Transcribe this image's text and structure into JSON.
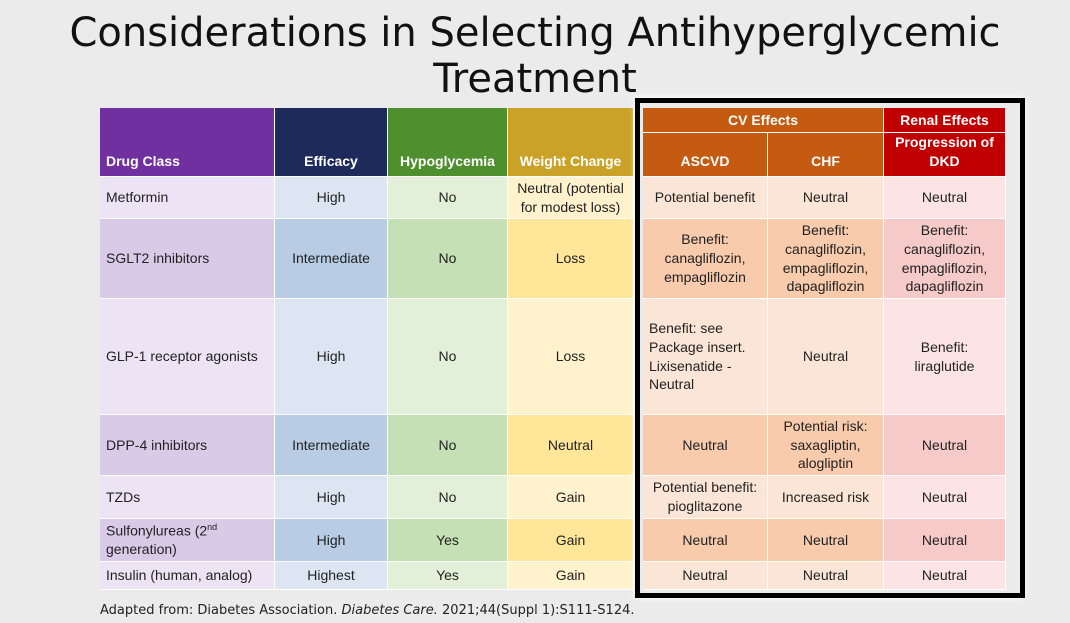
{
  "header": {
    "title": "Considerations in Selecting Antihyperglycemic Treatment"
  },
  "table": {
    "group_headers": [
      "CV Effects",
      "Renal Effects"
    ],
    "columns": [
      "Drug Class",
      "Efficacy",
      "Hypoglycemia",
      "Weight Change",
      "ASCVD",
      "CHF",
      "Progression of DKD"
    ],
    "rows": [
      [
        "Metformin",
        "High",
        "No",
        "Neutral (potential for modest loss)",
        "Potential benefit",
        "Neutral",
        "Neutral"
      ],
      [
        "SGLT2 inhibitors",
        "Intermediate",
        "No",
        "Loss",
        "Benefit: canagliflozin, empagliflozin",
        "Benefit: canagliflozin, empagliflozin, dapagliflozin",
        "Benefit: canagliflozin, empagliflozin, dapagliflozin"
      ],
      [
        "GLP-1 receptor agonists",
        "High",
        "No",
        "Loss",
        "Benefit: see Package insert. Lixisenatide - Neutral",
        "Neutral",
        "Benefit: liraglutide"
      ],
      [
        "DPP-4 inhibitors",
        "Intermediate",
        "No",
        "Neutral",
        "Neutral",
        "Potential risk: saxagliptin, alogliptin",
        "Neutral"
      ],
      [
        "TZDs",
        "High",
        "No",
        "Gain",
        "Potential benefit: pioglitazone",
        "Increased risk",
        "Neutral"
      ],
      [
        [
          "Sulfonylureas (2",
          "nd",
          " generation)"
        ],
        "High",
        "Yes",
        "Gain",
        "Neutral",
        "Neutral",
        "Neutral"
      ],
      [
        "Insulin (human, analog)",
        "Highest",
        "Yes",
        "Gain",
        "Neutral",
        "Neutral",
        "Neutral"
      ]
    ]
  },
  "footnote": [
    "Adapted from: Diabetes Association. ",
    "Diabetes Care.",
    " 2021;44(Suppl 1):S111-S124."
  ]
}
